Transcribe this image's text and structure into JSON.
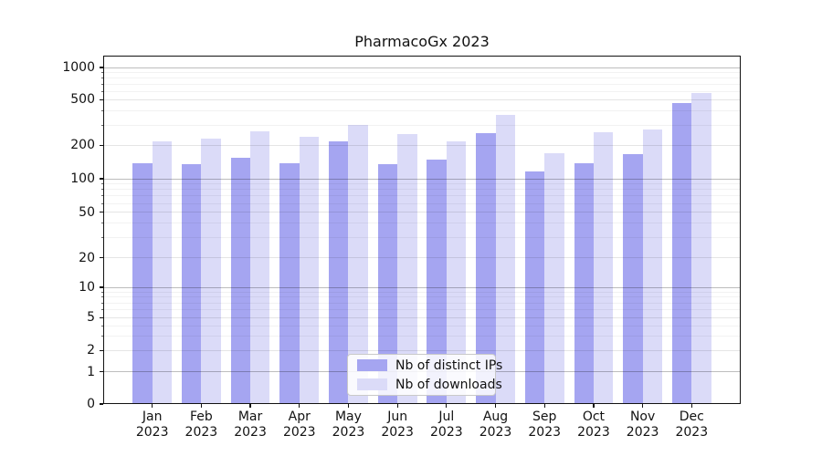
{
  "title": "PharmacoGx 2023",
  "chart_data": {
    "type": "bar",
    "categories": [
      "Jan",
      "Feb",
      "Mar",
      "Apr",
      "May",
      "Jun",
      "Jul",
      "Aug",
      "Sep",
      "Oct",
      "Nov",
      "Dec"
    ],
    "category_year": "2023",
    "series": [
      {
        "name": "Nb of distinct IPs",
        "color": "#a5a5f1",
        "values": [
          138,
          136,
          155,
          138,
          218,
          135,
          150,
          255,
          117,
          138,
          167,
          465
        ]
      },
      {
        "name": "Nb of downloads",
        "color": "#dbdbf8",
        "values": [
          218,
          230,
          265,
          238,
          300,
          250,
          215,
          365,
          170,
          262,
          273,
          577
        ]
      }
    ],
    "yticks": [
      0,
      1,
      2,
      5,
      10,
      20,
      50,
      100,
      200,
      500,
      1000
    ],
    "yscale": "log (symlog: linear below 1)",
    "ylim": [
      0,
      1150
    ],
    "xlabel": "",
    "ylabel": "",
    "grid": true,
    "legend_position": "lower center"
  }
}
